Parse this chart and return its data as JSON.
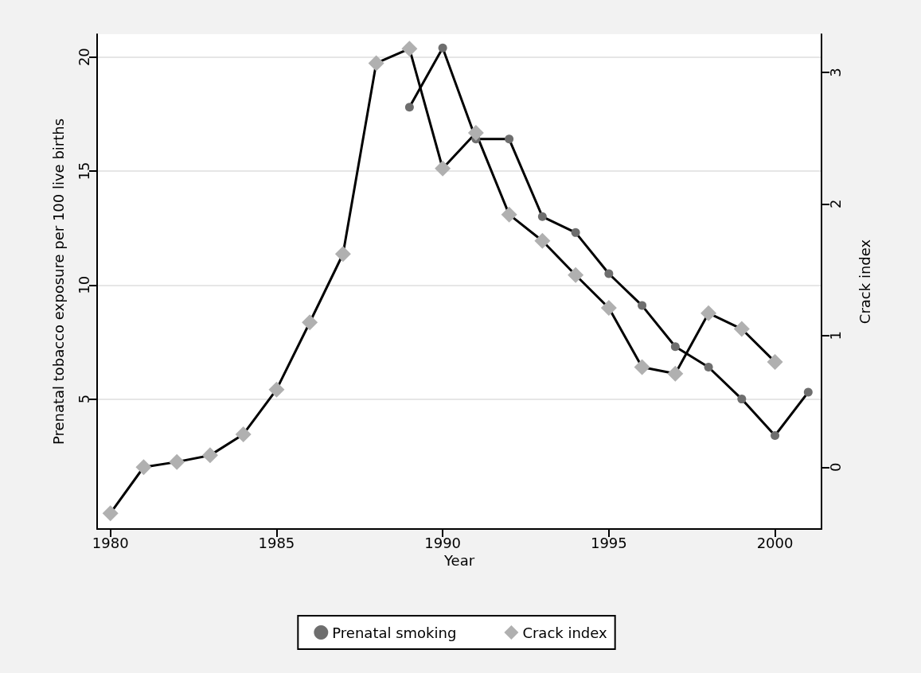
{
  "chart_data": {
    "type": "line",
    "xlabel": "Year",
    "ylabel": "Prenatal tobacco exposure per 100 live births",
    "y2label": "Crack index",
    "x": [
      1980,
      1981,
      1982,
      1983,
      1984,
      1985,
      1986,
      1987,
      1988,
      1989,
      1990,
      1991,
      1992,
      1993,
      1994,
      1995,
      1996,
      1997,
      1998,
      1999,
      2000,
      2001
    ],
    "series": [
      {
        "name": "Prenatal smoking",
        "color": "#6e6e6e",
        "marker": "circle",
        "values": [
          null,
          null,
          null,
          null,
          null,
          null,
          null,
          null,
          null,
          17.8,
          20.4,
          16.4,
          16.4,
          13.0,
          12.3,
          10.5,
          9.1,
          7.3,
          6.4,
          5.0,
          3.4,
          5.3
        ]
      },
      {
        "name": "Crack index",
        "color": "#b0b0b0",
        "marker": "diamond",
        "axis": "y2",
        "values": [
          -0.35,
          0.0,
          0.04,
          0.09,
          0.25,
          0.59,
          1.1,
          1.62,
          3.07,
          3.18,
          2.27,
          2.54,
          1.92,
          1.72,
          1.46,
          1.21,
          0.76,
          0.71,
          1.17,
          1.05,
          0.8,
          null
        ]
      }
    ],
    "xlim": [
      1979.6,
      2001.4
    ],
    "xticks": [
      1980,
      1985,
      1990,
      1995,
      2000
    ],
    "ylim": [
      -0.7,
      21
    ],
    "yticks": [
      5,
      10,
      15,
      20
    ],
    "y2lim": [
      -0.47,
      3.29
    ],
    "y2ticks": [
      0,
      1,
      2,
      3
    ],
    "grid": "y",
    "legend": "bottom",
    "line_style": "solid"
  }
}
